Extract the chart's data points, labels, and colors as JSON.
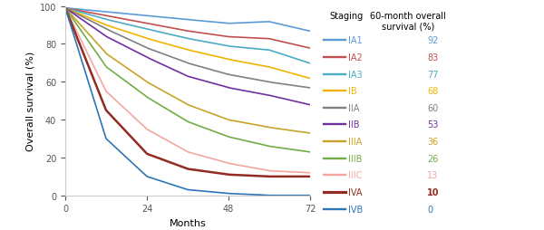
{
  "xlabel": "Months",
  "ylabel": "Overall survival (%)",
  "xlim": [
    0,
    72
  ],
  "ylim": [
    0,
    100
  ],
  "xticks": [
    0,
    24,
    48,
    72
  ],
  "yticks": [
    0,
    20,
    40,
    60,
    80,
    100
  ],
  "legend_title1": "Staging",
  "legend_title2": "60-month overall\nsurvival (%)",
  "stages": [
    {
      "label": "IA1",
      "survival": 92,
      "color": "#5B9BD5",
      "lw": 1.2
    },
    {
      "label": "IA2",
      "survival": 83,
      "color": "#C0504D",
      "lw": 1.2
    },
    {
      "label": "IA3",
      "survival": 77,
      "color": "#4BACC6",
      "lw": 1.2
    },
    {
      "label": "IB",
      "survival": 68,
      "color": "#F0B400",
      "lw": 1.2
    },
    {
      "label": "IIA",
      "survival": 60,
      "color": "#808080",
      "lw": 1.2
    },
    {
      "label": "IIB",
      "survival": 53,
      "color": "#7030A0",
      "lw": 1.2
    },
    {
      "label": "IIIA",
      "survival": 36,
      "color": "#C9A227",
      "lw": 1.2
    },
    {
      "label": "IIIB",
      "survival": 26,
      "color": "#70AD47",
      "lw": 1.2
    },
    {
      "label": "IIIC",
      "survival": 13,
      "color": "#F4A6A0",
      "lw": 1.2
    },
    {
      "label": "IVA",
      "survival": 10,
      "color": "#922B21",
      "lw": 1.8
    },
    {
      "label": "IVB",
      "survival": 0,
      "color": "#2E75B6",
      "lw": 1.2
    }
  ],
  "stage_anchors": {
    "IA1": [
      [
        0,
        99
      ],
      [
        12,
        97
      ],
      [
        24,
        95
      ],
      [
        36,
        93
      ],
      [
        48,
        91
      ],
      [
        60,
        92
      ],
      [
        72,
        87
      ]
    ],
    "IA2": [
      [
        0,
        99
      ],
      [
        12,
        95
      ],
      [
        24,
        91
      ],
      [
        36,
        87
      ],
      [
        48,
        84
      ],
      [
        60,
        83
      ],
      [
        72,
        78
      ]
    ],
    "IA3": [
      [
        0,
        99
      ],
      [
        12,
        93
      ],
      [
        24,
        88
      ],
      [
        36,
        83
      ],
      [
        48,
        79
      ],
      [
        60,
        77
      ],
      [
        72,
        70
      ]
    ],
    "IB": [
      [
        0,
        99
      ],
      [
        12,
        90
      ],
      [
        24,
        83
      ],
      [
        36,
        77
      ],
      [
        48,
        72
      ],
      [
        60,
        68
      ],
      [
        72,
        62
      ]
    ],
    "IIA": [
      [
        0,
        99
      ],
      [
        12,
        88
      ],
      [
        24,
        78
      ],
      [
        36,
        70
      ],
      [
        48,
        64
      ],
      [
        60,
        60
      ],
      [
        72,
        57
      ]
    ],
    "IIB": [
      [
        0,
        99
      ],
      [
        12,
        84
      ],
      [
        24,
        73
      ],
      [
        36,
        63
      ],
      [
        48,
        57
      ],
      [
        60,
        53
      ],
      [
        72,
        48
      ]
    ],
    "IIIA": [
      [
        0,
        99
      ],
      [
        12,
        75
      ],
      [
        24,
        60
      ],
      [
        36,
        48
      ],
      [
        48,
        40
      ],
      [
        60,
        36
      ],
      [
        72,
        33
      ]
    ],
    "IIIB": [
      [
        0,
        99
      ],
      [
        12,
        68
      ],
      [
        24,
        52
      ],
      [
        36,
        39
      ],
      [
        48,
        31
      ],
      [
        60,
        26
      ],
      [
        72,
        23
      ]
    ],
    "IIIC": [
      [
        0,
        99
      ],
      [
        12,
        55
      ],
      [
        24,
        35
      ],
      [
        36,
        23
      ],
      [
        48,
        17
      ],
      [
        60,
        13
      ],
      [
        72,
        12
      ]
    ],
    "IVA": [
      [
        0,
        99
      ],
      [
        12,
        45
      ],
      [
        24,
        22
      ],
      [
        36,
        14
      ],
      [
        48,
        11
      ],
      [
        60,
        10
      ],
      [
        72,
        10
      ]
    ],
    "IVB": [
      [
        0,
        99
      ],
      [
        12,
        30
      ],
      [
        24,
        10
      ],
      [
        36,
        3
      ],
      [
        48,
        1
      ],
      [
        55,
        0.5
      ],
      [
        60,
        0
      ],
      [
        72,
        0
      ]
    ]
  }
}
